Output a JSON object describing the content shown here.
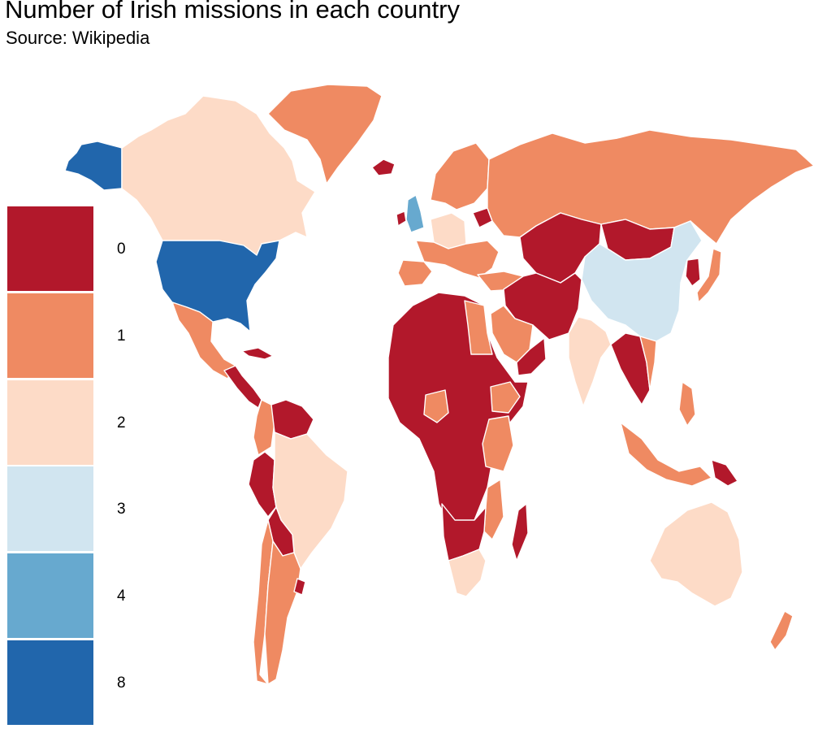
{
  "header": {
    "title": "Number of Irish missions in each country",
    "subtitle": "Source: Wikipedia"
  },
  "colors": {
    "0": "#b2182b",
    "1": "#ef8a62",
    "2": "#fddbc7",
    "3": "#d1e5f0",
    "4": "#67a9cf",
    "8": "#2166ac"
  },
  "legend": {
    "items": [
      {
        "label": "0",
        "color": "#b2182b"
      },
      {
        "label": "1",
        "color": "#ef8a62"
      },
      {
        "label": "2",
        "color": "#fddbc7"
      },
      {
        "label": "3",
        "color": "#d1e5f0"
      },
      {
        "label": "4",
        "color": "#67a9cf"
      },
      {
        "label": "8",
        "color": "#2166ac"
      }
    ]
  },
  "map": {
    "type": "choropleth",
    "regions": [
      {
        "name": "United States",
        "value": 8
      },
      {
        "name": "Alaska",
        "value": 8
      },
      {
        "name": "Canada",
        "value": 2
      },
      {
        "name": "Greenland",
        "value": 1
      },
      {
        "name": "Iceland",
        "value": 0
      },
      {
        "name": "Ireland",
        "value": 0
      },
      {
        "name": "United Kingdom",
        "value": 4
      },
      {
        "name": "Mexico",
        "value": 1
      },
      {
        "name": "Central America",
        "value": 0
      },
      {
        "name": "Cuba",
        "value": 0
      },
      {
        "name": "Colombia",
        "value": 1
      },
      {
        "name": "Venezuela",
        "value": 0
      },
      {
        "name": "Peru",
        "value": 0
      },
      {
        "name": "Bolivia",
        "value": 0
      },
      {
        "name": "Brazil",
        "value": 2
      },
      {
        "name": "Argentina",
        "value": 1
      },
      {
        "name": "Chile",
        "value": 1
      },
      {
        "name": "Uruguay",
        "value": 0
      },
      {
        "name": "Scandinavia",
        "value": 1
      },
      {
        "name": "Western Europe",
        "value": 1
      },
      {
        "name": "Germany",
        "value": 2
      },
      {
        "name": "Iberia",
        "value": 1
      },
      {
        "name": "Russia",
        "value": 1
      },
      {
        "name": "Belarus",
        "value": 0
      },
      {
        "name": "Turkey",
        "value": 1
      },
      {
        "name": "Kazakhstan and Central Asia",
        "value": 0
      },
      {
        "name": "Mongolia",
        "value": 0
      },
      {
        "name": "China",
        "value": 3
      },
      {
        "name": "Korea",
        "value": 0
      },
      {
        "name": "Japan",
        "value": 1
      },
      {
        "name": "Iran and Afghanistan",
        "value": 0
      },
      {
        "name": "Saudi Arabia",
        "value": 1
      },
      {
        "name": "Yemen and Oman",
        "value": 0
      },
      {
        "name": "India",
        "value": 2
      },
      {
        "name": "Southeast Asia mainland",
        "value": 0
      },
      {
        "name": "Vietnam",
        "value": 1
      },
      {
        "name": "Indonesia and Malaysia",
        "value": 1
      },
      {
        "name": "Philippines",
        "value": 1
      },
      {
        "name": "Papua New Guinea",
        "value": 0
      },
      {
        "name": "Australia",
        "value": 2
      },
      {
        "name": "New Zealand",
        "value": 1
      },
      {
        "name": "Egypt",
        "value": 1
      },
      {
        "name": "North and Central Africa",
        "value": 0
      },
      {
        "name": "Nigeria",
        "value": 1
      },
      {
        "name": "Ethiopia",
        "value": 1
      },
      {
        "name": "Kenya and Tanzania",
        "value": 1
      },
      {
        "name": "Mozambique",
        "value": 1
      },
      {
        "name": "Southern Africa",
        "value": 0
      },
      {
        "name": "South Africa",
        "value": 2
      },
      {
        "name": "Madagascar",
        "value": 0
      }
    ]
  }
}
